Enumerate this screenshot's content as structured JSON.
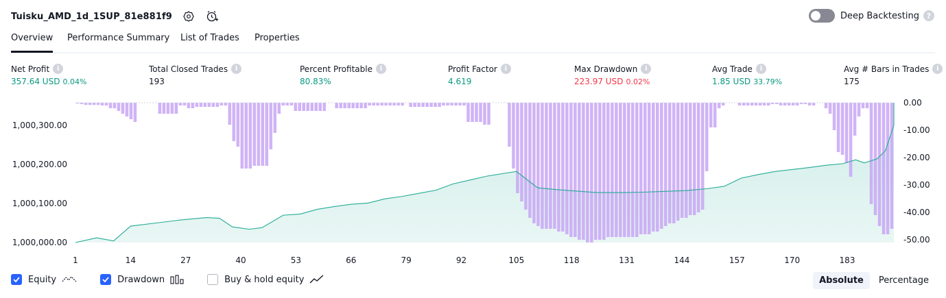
{
  "header": {
    "title": "Tuisku_AMD_1d_1SUP_81e881f9",
    "deep_backtesting_label": "Deep Backtesting"
  },
  "tabs": [
    {
      "label": "Overview"
    },
    {
      "label": "Performance Summary"
    },
    {
      "label": "List of Trades"
    },
    {
      "label": "Properties"
    }
  ],
  "metrics": [
    {
      "label": "Net Profit",
      "value": "357.64 USD",
      "pct": "0.04%"
    },
    {
      "label": "Total Closed Trades",
      "value": "193"
    },
    {
      "label": "Percent Profitable",
      "value": "80.83%"
    },
    {
      "label": "Profit Factor",
      "value": "4.619"
    },
    {
      "label": "Max Drawdown",
      "value": "223.97 USD",
      "pct": "0.02%"
    },
    {
      "label": "Avg Trade",
      "value": "1.85 USD",
      "pct": "33.79%"
    },
    {
      "label": "Avg # Bars in Trades",
      "value": "175"
    }
  ],
  "legend": {
    "equity": "Equity",
    "drawdown": "Drawdown",
    "buy_hold": "Buy & hold equity"
  },
  "mode": {
    "absolute": "Absolute",
    "percentage": "Percentage"
  },
  "colors": {
    "positive": "#089981",
    "negative": "#f23645",
    "equity_line": "#22ab94",
    "drawdown_bar": "#c8a6f5",
    "accent": "#2962ff"
  },
  "chart_data": {
    "type": "area",
    "x_ticks": [
      1,
      14,
      27,
      40,
      53,
      66,
      79,
      92,
      105,
      118,
      131,
      144,
      157,
      170,
      183
    ],
    "x_range": [
      1,
      194
    ],
    "left_axis": {
      "ticks": [
        "1,000,000.00",
        "1,000,100.00",
        "1,000,200.00",
        "1,000,300.00"
      ],
      "tick_values": [
        1000000,
        1000100,
        1000200,
        1000300
      ],
      "range": [
        1000000,
        1000358
      ]
    },
    "right_axis": {
      "ticks": [
        "0.00",
        "-10.00",
        "-20.00",
        "-30.00",
        "-40.00",
        "-50.00"
      ],
      "tick_values": [
        0,
        -10,
        -20,
        -30,
        -40,
        -50
      ],
      "range": [
        -51,
        0
      ]
    },
    "series": [
      {
        "name": "Equity",
        "axis": "left",
        "points": [
          [
            1,
            1000000
          ],
          [
            6,
            1000012
          ],
          [
            10,
            1000004
          ],
          [
            14,
            1000042
          ],
          [
            20,
            1000050
          ],
          [
            26,
            1000058
          ],
          [
            32,
            1000064
          ],
          [
            35,
            1000062
          ],
          [
            38,
            1000040
          ],
          [
            42,
            1000034
          ],
          [
            45,
            1000038
          ],
          [
            50,
            1000070
          ],
          [
            54,
            1000073
          ],
          [
            58,
            1000085
          ],
          [
            62,
            1000092
          ],
          [
            66,
            1000098
          ],
          [
            70,
            1000101
          ],
          [
            74,
            1000112
          ],
          [
            78,
            1000118
          ],
          [
            82,
            1000126
          ],
          [
            86,
            1000134
          ],
          [
            90,
            1000150
          ],
          [
            94,
            1000160
          ],
          [
            98,
            1000170
          ],
          [
            102,
            1000177
          ],
          [
            105,
            1000182
          ],
          [
            110,
            1000140
          ],
          [
            115,
            1000135
          ],
          [
            120,
            1000131
          ],
          [
            124,
            1000128
          ],
          [
            130,
            1000128
          ],
          [
            135,
            1000129
          ],
          [
            140,
            1000131
          ],
          [
            145,
            1000133
          ],
          [
            150,
            1000138
          ],
          [
            154,
            1000144
          ],
          [
            158,
            1000165
          ],
          [
            162,
            1000174
          ],
          [
            166,
            1000182
          ],
          [
            170,
            1000187
          ],
          [
            174,
            1000192
          ],
          [
            178,
            1000198
          ],
          [
            182,
            1000202
          ],
          [
            185,
            1000212
          ],
          [
            187,
            1000204
          ],
          [
            190,
            1000214
          ],
          [
            192,
            1000235
          ],
          [
            194,
            1000300
          ],
          [
            196,
            1000358
          ]
        ]
      },
      {
        "name": "Drawdown",
        "axis": "right",
        "type": "bar",
        "values": [
          -0.3,
          -0.5,
          -0.8,
          -0.8,
          -0.8,
          -0.8,
          -1,
          -1,
          -2,
          -2,
          -3,
          -4,
          -5,
          -6,
          -7,
          0,
          0,
          0,
          0,
          0,
          -4,
          -4,
          -4,
          -4,
          -4,
          -1,
          -1,
          -2,
          -2,
          -1.5,
          -1.5,
          -1.5,
          -1.5,
          -1.5,
          -1.5,
          -1,
          -1,
          -8,
          -14,
          -16,
          -24,
          -24,
          -24,
          -23,
          -23,
          -23,
          -23,
          -17,
          -11,
          -4,
          -1,
          -1,
          -1,
          -3,
          -3,
          -3,
          -3,
          -3,
          -3,
          -3,
          -3,
          0,
          0,
          -2,
          -2,
          -2,
          -2,
          -2,
          -2,
          -2,
          -2,
          -1,
          -1,
          -1,
          -1,
          -1,
          -1,
          -1,
          -1,
          -1,
          0,
          -1.5,
          -1.5,
          -1.5,
          -1.5,
          -1.5,
          -1.5,
          -1.5,
          -1.5,
          -1,
          -1,
          -1,
          -1,
          -1,
          -1,
          -7,
          -7,
          -7,
          -7,
          -8,
          -8,
          0,
          0,
          0,
          0,
          -16,
          -24,
          -33,
          -36,
          -39,
          -42,
          -44,
          -45,
          -46,
          -46,
          -46,
          -46,
          -47,
          -47,
          -48,
          -49,
          -49,
          -50,
          -50,
          -51,
          -51,
          -50,
          -50,
          -50,
          -49,
          -49,
          -49,
          -49,
          -49,
          -49,
          -49,
          -49,
          -48,
          -48,
          -48,
          -47,
          -47,
          -46,
          -45,
          -44,
          -44,
          -43,
          -42,
          -42,
          -41,
          -41,
          -40,
          -39,
          -25,
          -9,
          -9,
          -2,
          -1,
          0,
          0,
          0,
          -1,
          -1,
          -1,
          -1,
          -1,
          -1,
          -1,
          -1,
          -0.5,
          -0.5,
          -1,
          -1,
          -1,
          -1,
          -1,
          -0.5,
          -0.5,
          -1,
          -1,
          0,
          0,
          -2,
          -4,
          -10,
          -18,
          -19,
          -22,
          -27,
          -12,
          -5,
          -2,
          -2,
          -37,
          -41,
          -45,
          -48,
          -48,
          -46
        ]
      }
    ],
    "title": "",
    "xlabel": "",
    "ylabel": "",
    "grid": false
  }
}
